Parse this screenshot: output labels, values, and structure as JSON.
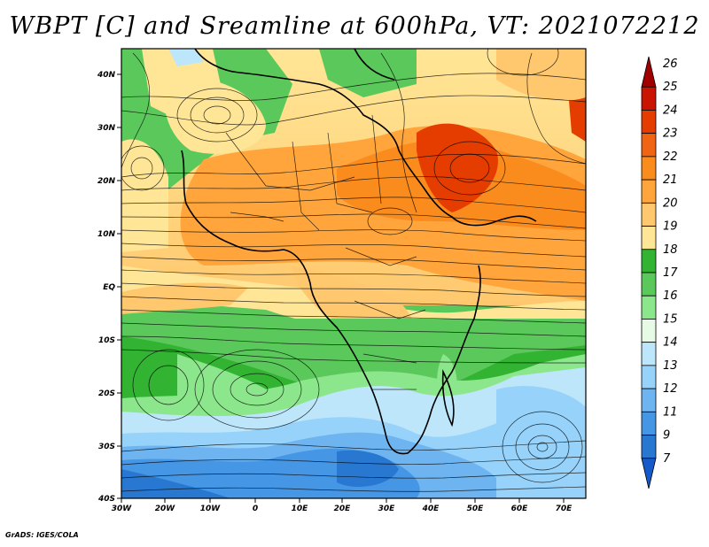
{
  "title": "WBPT [C] and Sreamline at 600hPa, VT: 2021072212",
  "credit": "GrADS: IGES/COLA",
  "lat_labels": [
    "40N",
    "30N",
    "20N",
    "10N",
    "EQ",
    "10S",
    "20S",
    "30S",
    "40S"
  ],
  "lon_labels": [
    "30W",
    "20W",
    "10W",
    "0",
    "10E",
    "20E",
    "30E",
    "40E",
    "50E",
    "60E",
    "70E"
  ],
  "colorbar": {
    "labels": [
      "26",
      "25",
      "24",
      "23",
      "22",
      "21",
      "20",
      "19",
      "18",
      "17",
      "16",
      "15",
      "14",
      "13",
      "12",
      "11",
      "9",
      "7"
    ],
    "colors": [
      "#a10000",
      "#c81400",
      "#e53d00",
      "#f06414",
      "#fa8c1e",
      "#ffa53c",
      "#ffc86e",
      "#ffe696",
      "#32b432",
      "#5ac85a",
      "#8ce68c",
      "#e6fae6",
      "#bee6fa",
      "#96d2fa",
      "#6eb4f0",
      "#4696e6",
      "#2878d2",
      "#145ac8"
    ]
  }
}
